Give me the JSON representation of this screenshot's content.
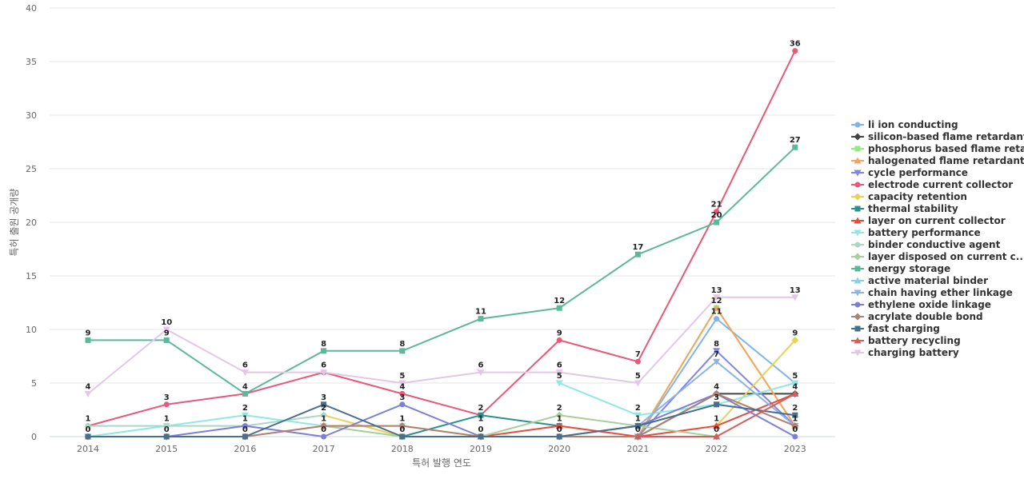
{
  "chart_data": {
    "type": "line",
    "title": "",
    "xlabel": "특허 발행 연도",
    "ylabel": "특허 출원 공개량",
    "x": [
      "2014",
      "2015",
      "2016",
      "2017",
      "2018",
      "2019",
      "2020",
      "2021",
      "2022",
      "2023"
    ],
    "ylim": [
      0,
      40
    ],
    "yticks": [
      0,
      5,
      10,
      15,
      20,
      25,
      30,
      35,
      40
    ],
    "grid": true,
    "legend_position": "right",
    "series": [
      {
        "name": "li ion conducting",
        "color": "#7cb5ec",
        "marker": "circle",
        "values": [
          null,
          null,
          null,
          null,
          null,
          null,
          null,
          0,
          11,
          5
        ]
      },
      {
        "name": "silicon-based flame retardant",
        "color": "#434348",
        "marker": "diamond",
        "values": [
          null,
          null,
          null,
          null,
          null,
          null,
          null,
          0,
          4,
          4
        ]
      },
      {
        "name": "phosphorus based flame reta...",
        "color": "#90ed7d",
        "marker": "square",
        "values": [
          null,
          null,
          null,
          null,
          null,
          null,
          null,
          0,
          12,
          1
        ]
      },
      {
        "name": "halogenated flame retardant",
        "color": "#f7a35c",
        "marker": "triangle",
        "values": [
          null,
          null,
          null,
          null,
          null,
          null,
          null,
          0,
          12,
          1
        ]
      },
      {
        "name": "cycle performance",
        "color": "#8085e9",
        "marker": "triangle-down",
        "values": [
          null,
          null,
          null,
          null,
          null,
          null,
          null,
          0,
          8,
          1
        ]
      },
      {
        "name": "electrode current collector",
        "color": "#e8587a",
        "marker": "circle",
        "values": [
          1,
          3,
          4,
          6,
          4,
          2,
          9,
          7,
          21,
          36
        ]
      },
      {
        "name": "capacity retention",
        "color": "#e4d354",
        "marker": "diamond",
        "values": [
          null,
          null,
          null,
          2,
          0,
          null,
          null,
          null,
          1,
          9
        ]
      },
      {
        "name": "thermal stability",
        "color": "#2b908f",
        "marker": "square",
        "values": [
          null,
          null,
          null,
          null,
          0,
          2,
          1,
          null,
          null,
          null
        ]
      },
      {
        "name": "layer on current collector",
        "color": "#e74c3c",
        "marker": "triangle",
        "values": [
          null,
          null,
          null,
          null,
          null,
          0,
          1,
          0,
          1,
          4
        ]
      },
      {
        "name": "battery performance",
        "color": "#91e8e1",
        "marker": "triangle-down",
        "values": [
          0,
          1,
          2,
          1,
          1,
          null,
          5,
          2,
          3,
          5
        ]
      },
      {
        "name": "binder conductive agent",
        "color": "#a8d8c4",
        "marker": "circle",
        "values": [
          1,
          1,
          1,
          2,
          null,
          null,
          null,
          null,
          null,
          null
        ]
      },
      {
        "name": "layer disposed on current c...",
        "color": "#a6cf9b",
        "marker": "diamond",
        "values": [
          null,
          null,
          null,
          1,
          0,
          0,
          2,
          1,
          0,
          null
        ]
      },
      {
        "name": "energy storage",
        "color": "#5cb89a",
        "marker": "square",
        "values": [
          9,
          9,
          4,
          8,
          8,
          11,
          12,
          17,
          20,
          27
        ]
      },
      {
        "name": "active material binder",
        "color": "#88d1e6",
        "marker": "triangle",
        "values": [
          null,
          null,
          null,
          null,
          null,
          null,
          null,
          null,
          null,
          null
        ]
      },
      {
        "name": "chain having ether linkage",
        "color": "#8fb3e0",
        "marker": "triangle-down",
        "values": [
          null,
          null,
          null,
          null,
          null,
          null,
          null,
          1,
          7,
          1
        ]
      },
      {
        "name": "ethylene oxide linkage",
        "color": "#7b7fd6",
        "marker": "circle",
        "values": [
          0,
          0,
          1,
          0,
          3,
          0,
          0,
          1,
          4,
          0
        ]
      },
      {
        "name": "acrylate double bond",
        "color": "#b08070",
        "marker": "diamond",
        "values": [
          0,
          0,
          0,
          1,
          1,
          0,
          0,
          0,
          4,
          1
        ]
      },
      {
        "name": "fast charging",
        "color": "#4a6f8c",
        "marker": "square",
        "values": [
          0,
          0,
          0,
          3,
          0,
          0,
          0,
          1,
          3,
          2
        ]
      },
      {
        "name": "battery recycling",
        "color": "#d45d5d",
        "marker": "triangle",
        "values": [
          null,
          null,
          null,
          null,
          null,
          null,
          null,
          0,
          0,
          4
        ]
      },
      {
        "name": "charging battery",
        "color": "#e2c8e4",
        "marker": "triangle-down",
        "values": [
          4,
          10,
          6,
          6,
          5,
          6,
          6,
          5,
          13,
          13
        ]
      }
    ],
    "data_labels": [
      {
        "x": "2014",
        "text": "9",
        "y": 9
      },
      {
        "x": "2014",
        "text": "4",
        "y": 4
      },
      {
        "x": "2014",
        "text": "1",
        "y": 1
      },
      {
        "x": "2014",
        "text": "0",
        "y": 0
      },
      {
        "x": "2015",
        "text": "10",
        "y": 10
      },
      {
        "x": "2015",
        "text": "9",
        "y": 9
      },
      {
        "x": "2015",
        "text": "3",
        "y": 3
      },
      {
        "x": "2015",
        "text": "1",
        "y": 1
      },
      {
        "x": "2015",
        "text": "0",
        "y": 0
      },
      {
        "x": "2016",
        "text": "6",
        "y": 6
      },
      {
        "x": "2016",
        "text": "4",
        "y": 4
      },
      {
        "x": "2016",
        "text": "2",
        "y": 2
      },
      {
        "x": "2016",
        "text": "1",
        "y": 1
      },
      {
        "x": "2016",
        "text": "0",
        "y": 0
      },
      {
        "x": "2017",
        "text": "8",
        "y": 8
      },
      {
        "x": "2017",
        "text": "6",
        "y": 6
      },
      {
        "x": "2017",
        "text": "3",
        "y": 3
      },
      {
        "x": "2017",
        "text": "2",
        "y": 2
      },
      {
        "x": "2017",
        "text": "1",
        "y": 1
      },
      {
        "x": "2017",
        "text": "0",
        "y": 0
      },
      {
        "x": "2018",
        "text": "8",
        "y": 8
      },
      {
        "x": "2018",
        "text": "5",
        "y": 5
      },
      {
        "x": "2018",
        "text": "4",
        "y": 4
      },
      {
        "x": "2018",
        "text": "3",
        "y": 3
      },
      {
        "x": "2018",
        "text": "1",
        "y": 1
      },
      {
        "x": "2018",
        "text": "0",
        "y": 0
      },
      {
        "x": "2019",
        "text": "11",
        "y": 11
      },
      {
        "x": "2019",
        "text": "6",
        "y": 6
      },
      {
        "x": "2019",
        "text": "2",
        "y": 2
      },
      {
        "x": "2019",
        "text": "1",
        "y": 1
      },
      {
        "x": "2019",
        "text": "0",
        "y": 0
      },
      {
        "x": "2020",
        "text": "12",
        "y": 12
      },
      {
        "x": "2020",
        "text": "9",
        "y": 9
      },
      {
        "x": "2020",
        "text": "6",
        "y": 6
      },
      {
        "x": "2020",
        "text": "5",
        "y": 5
      },
      {
        "x": "2020",
        "text": "2",
        "y": 2
      },
      {
        "x": "2020",
        "text": "1",
        "y": 1
      },
      {
        "x": "2020",
        "text": "0",
        "y": 0
      },
      {
        "x": "2021",
        "text": "17",
        "y": 17
      },
      {
        "x": "2021",
        "text": "7",
        "y": 7
      },
      {
        "x": "2021",
        "text": "5",
        "y": 5
      },
      {
        "x": "2021",
        "text": "2",
        "y": 2
      },
      {
        "x": "2021",
        "text": "1",
        "y": 1
      },
      {
        "x": "2021",
        "text": "0",
        "y": 0
      },
      {
        "x": "2022",
        "text": "21",
        "y": 21
      },
      {
        "x": "2022",
        "text": "20",
        "y": 20
      },
      {
        "x": "2022",
        "text": "13",
        "y": 13
      },
      {
        "x": "2022",
        "text": "12",
        "y": 12
      },
      {
        "x": "2022",
        "text": "11",
        "y": 11
      },
      {
        "x": "2022",
        "text": "8",
        "y": 8
      },
      {
        "x": "2022",
        "text": "7",
        "y": 7
      },
      {
        "x": "2022",
        "text": "4",
        "y": 4
      },
      {
        "x": "2022",
        "text": "3",
        "y": 3
      },
      {
        "x": "2022",
        "text": "1",
        "y": 1
      },
      {
        "x": "2022",
        "text": "0",
        "y": 0
      },
      {
        "x": "2023",
        "text": "36",
        "y": 36
      },
      {
        "x": "2023",
        "text": "27",
        "y": 27
      },
      {
        "x": "2023",
        "text": "13",
        "y": 13
      },
      {
        "x": "2023",
        "text": "9",
        "y": 9
      },
      {
        "x": "2023",
        "text": "5",
        "y": 5
      },
      {
        "x": "2023",
        "text": "4",
        "y": 4
      },
      {
        "x": "2023",
        "text": "2",
        "y": 2
      },
      {
        "x": "2023",
        "text": "1",
        "y": 1
      },
      {
        "x": "2023",
        "text": "0",
        "y": 0
      }
    ]
  }
}
